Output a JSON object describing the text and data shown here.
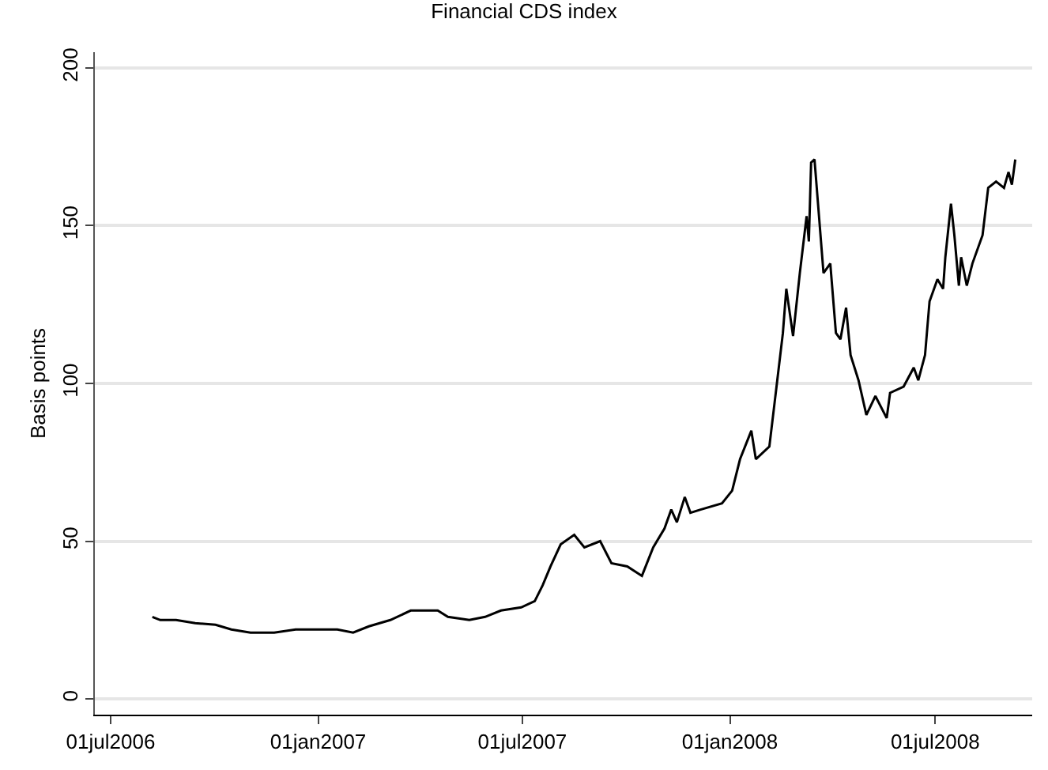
{
  "chart_data": {
    "type": "line",
    "title": "Financial CDS index",
    "ylabel": "Basis points",
    "x": [
      "2006-08-07",
      "2006-08-14",
      "2006-08-28",
      "2006-09-14",
      "2006-10-02",
      "2006-10-16",
      "2006-11-02",
      "2006-11-23",
      "2006-12-12",
      "2006-12-30",
      "2007-01-18",
      "2007-02-01",
      "2007-02-15",
      "2007-03-06",
      "2007-03-24",
      "2007-04-17",
      "2007-04-26",
      "2007-05-15",
      "2007-05-29",
      "2007-06-12",
      "2007-06-30",
      "2007-07-12",
      "2007-07-19",
      "2007-07-26",
      "2007-08-04",
      "2007-08-16",
      "2007-08-25",
      "2007-09-08",
      "2007-09-18",
      "2007-10-02",
      "2007-10-15",
      "2007-10-25",
      "2007-11-04",
      "2007-11-10",
      "2007-11-15",
      "2007-11-22",
      "2007-11-27",
      "2007-12-06",
      "2007-12-25",
      "2008-01-03",
      "2008-01-10",
      "2008-01-20",
      "2008-01-24",
      "2008-02-05",
      "2008-02-12",
      "2008-02-17",
      "2008-02-20",
      "2008-02-26",
      "2008-03-03",
      "2008-03-09",
      "2008-03-11",
      "2008-03-13",
      "2008-03-16",
      "2008-03-20",
      "2008-03-24",
      "2008-03-30",
      "2008-04-04",
      "2008-04-08",
      "2008-04-13",
      "2008-04-17",
      "2008-04-24",
      "2008-05-01",
      "2008-05-09",
      "2008-05-19",
      "2008-05-22",
      "2008-06-03",
      "2008-06-12",
      "2008-06-16",
      "2008-06-22",
      "2008-06-26",
      "2008-07-03",
      "2008-07-08",
      "2008-07-10",
      "2008-07-15",
      "2008-07-18",
      "2008-07-22",
      "2008-07-24",
      "2008-07-29",
      "2008-08-03",
      "2008-08-12",
      "2008-08-17",
      "2008-08-24",
      "2008-08-31",
      "2008-09-04",
      "2008-09-07",
      "2008-09-10"
    ],
    "series": [
      {
        "color": "#000000",
        "values": [
          26,
          25,
          25,
          24,
          23.5,
          22,
          21,
          21,
          22,
          22,
          22,
          21,
          23,
          25,
          28,
          28,
          26,
          25,
          26,
          28,
          29,
          31,
          36,
          42,
          49,
          52,
          48,
          50,
          43,
          42,
          39,
          48,
          54,
          60,
          56,
          64,
          59,
          60,
          62,
          66,
          76,
          85,
          76,
          80,
          101,
          116,
          130,
          115,
          135,
          153,
          145,
          170,
          171,
          153,
          135,
          138,
          116,
          114,
          124,
          109,
          101,
          90,
          96,
          89,
          97,
          99,
          105,
          101,
          109,
          126,
          133,
          130,
          140,
          157,
          147,
          131,
          140,
          131,
          138,
          147,
          162,
          164,
          162,
          167,
          163,
          171
        ]
      }
    ],
    "xlim": [
      "2006-06-17",
      "2008-09-25"
    ],
    "xticks": [
      {
        "value": "2006-07-01",
        "label": "01jul2006"
      },
      {
        "value": "2007-01-01",
        "label": "01jan2007"
      },
      {
        "value": "2007-07-01",
        "label": "01jul2007"
      },
      {
        "value": "2008-01-01",
        "label": "01jan2008"
      },
      {
        "value": "2008-07-01",
        "label": "01jul2008"
      }
    ],
    "ylim": [
      -5,
      205
    ],
    "yticks": [
      0,
      50,
      100,
      150,
      200
    ],
    "grid": "y",
    "line_style": "solid"
  }
}
